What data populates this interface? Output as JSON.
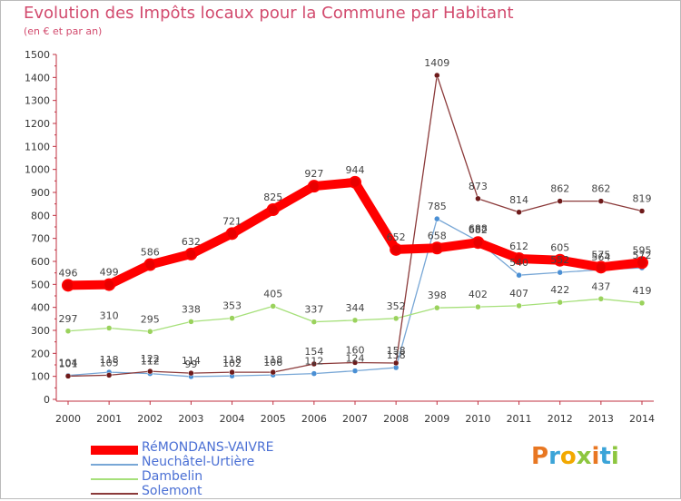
{
  "header": {
    "title": "Evolution des Impôts locaux pour la Commune par Habitant",
    "subtitle": "(en € et par an)"
  },
  "logo": {
    "text": "Proxiti",
    "colors": [
      "#e87722",
      "#3ba4d8",
      "#f2a900",
      "#8dc63f",
      "#e87722",
      "#3ba4d8",
      "#8dc63f"
    ]
  },
  "chart_data": {
    "type": "line",
    "title": "Evolution des Impôts locaux pour la Commune par Habitant",
    "subtitle": "(en € et par an)",
    "x": [
      2000,
      2001,
      2002,
      2003,
      2004,
      2005,
      2006,
      2007,
      2008,
      2009,
      2010,
      2011,
      2012,
      2013,
      2014
    ],
    "ylim": [
      0,
      1500
    ],
    "yticks": [
      0,
      100,
      200,
      300,
      400,
      500,
      600,
      700,
      800,
      900,
      1000,
      1100,
      1200,
      1300,
      1400,
      1500
    ],
    "grid": false,
    "legend": "bottom-left",
    "series": [
      {
        "name": "RéMONDANS-VAIVRE",
        "color": "#ff0000",
        "marker": "#e80000",
        "stroke": 10,
        "values": [
          496,
          499,
          586,
          632,
          721,
          825,
          927,
          944,
          652,
          658,
          682,
          612,
          605,
          575,
          595
        ]
      },
      {
        "name": "Neuchâtel-Urtière",
        "color": "#78a7d6",
        "marker": "#4a8fd4",
        "stroke": 1.3,
        "values": [
          104,
          118,
          112,
          99,
          102,
          106,
          112,
          124,
          138,
          785,
          688,
          540,
          552,
          564,
          572
        ]
      },
      {
        "name": "Dambelin",
        "color": "#a6e07a",
        "marker": "#9ad25c",
        "stroke": 1.3,
        "values": [
          297,
          310,
          295,
          338,
          353,
          405,
          337,
          344,
          352,
          398,
          402,
          407,
          422,
          437,
          419
        ]
      },
      {
        "name": "Solemont",
        "color": "#8b3a3a",
        "marker": "#6e1a1a",
        "stroke": 1.3,
        "values": [
          101,
          105,
          122,
          114,
          118,
          118,
          154,
          160,
          158,
          1409,
          873,
          814,
          862,
          862,
          819
        ]
      }
    ]
  }
}
